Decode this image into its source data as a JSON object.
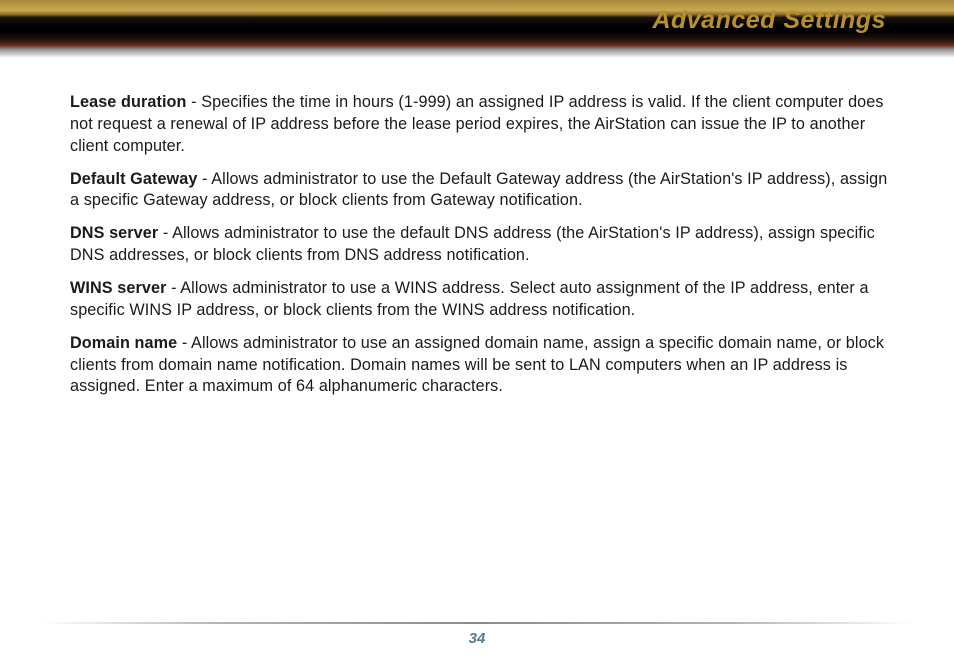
{
  "header": {
    "title": "Advanced Settings"
  },
  "settings": [
    {
      "term": "Lease duration",
      "sep": " - ",
      "desc": "Specifies the time in hours (1-999) an assigned IP address is valid. If the client computer does not request a renewal of IP address before the lease period expires, the AirStation can issue the IP to another client computer."
    },
    {
      "term": "Default Gateway ",
      "sep": " - ",
      "desc": "Allows administrator to use the Default Gateway address (the AirStation's IP address), assign a specific Gateway address, or block clients from Gateway notification."
    },
    {
      "term": "DNS server",
      "sep": " - ",
      "desc": "Allows administrator to use the default DNS address (the AirStation's IP address), assign specific DNS addresses, or block clients from DNS address notification."
    },
    {
      "term": "WINS server",
      "sep": " - ",
      "desc": "Allows administrator to use a WINS address.  Select auto assignment of the IP address, enter a specific WINS IP address, or block clients from the WINS address notification."
    },
    {
      "term": "Domain name",
      "sep": " - ",
      "desc": "Allows administrator to use an assigned domain name, assign a specific domain name, or block clients from domain name notification.  Domain names will be sent to LAN computers when an IP address is assigned.  Enter a maximum of 64 alphanumeric characters."
    }
  ],
  "footer": {
    "page_number": "34"
  }
}
